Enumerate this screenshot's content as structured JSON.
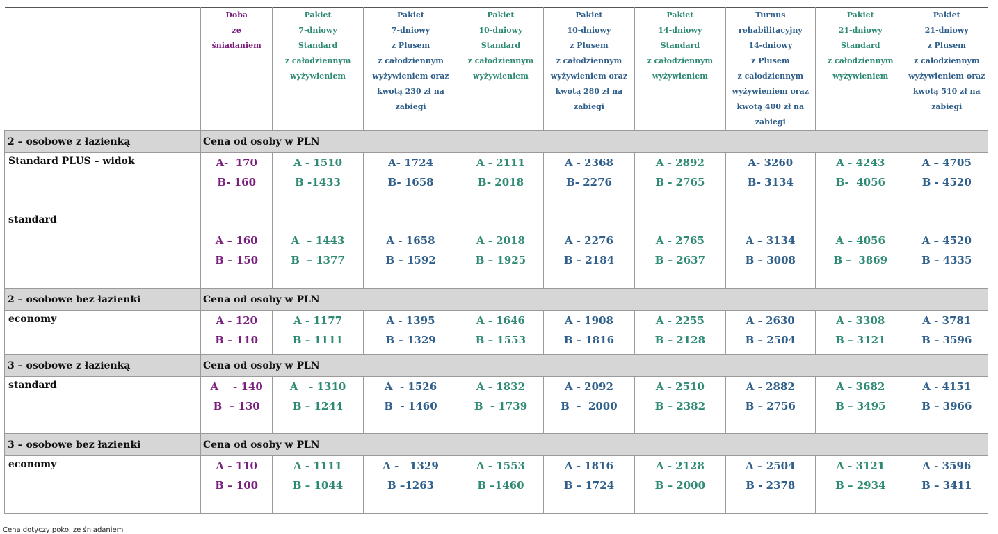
{
  "columns": [
    {
      "lines": [
        "Doba",
        "ze",
        "śniadaniem"
      ],
      "color": "purple"
    },
    {
      "lines": [
        "Pakiet",
        "7-dniowy",
        "Standard",
        "z całodziennym",
        "wyżywieniem"
      ],
      "color": "green"
    },
    {
      "lines": [
        "Pakiet",
        "7-dniowy",
        "z Plusem",
        "z całodziennym",
        "wyżywieniem oraz",
        "kwotą 230 zł na",
        "zabiegi"
      ],
      "color": "blue"
    },
    {
      "lines": [
        "Pakiet",
        "10-dniowy",
        "Standard",
        "z całodziennym",
        "wyżywieniem"
      ],
      "color": "green"
    },
    {
      "lines": [
        "Pakiet",
        "10-dniowy",
        "z Plusem",
        "z całodziennym",
        "wyżywieniem oraz",
        "kwotą 280 zł na",
        "zabiegi"
      ],
      "color": "blue"
    },
    {
      "lines": [
        "Pakiet",
        "14-dniowy",
        "Standard",
        "z całodziennym",
        "wyżywieniem"
      ],
      "color": "green"
    },
    {
      "lines": [
        "Turnus",
        "rehabilitacyjny",
        "14-dniowy",
        "z Plusem",
        "z całodziennym",
        "wyżywieniem oraz",
        "kwotą 400 zł na",
        "zabiegi"
      ],
      "color": "blue"
    },
    {
      "lines": [
        "Pakiet",
        "21-dniowy",
        "Standard",
        "z całodziennym",
        "wyżywieniem"
      ],
      "color": "green"
    },
    {
      "lines": [
        "Pakiet",
        "21-dniowy",
        "z Plusem",
        "z całodziennym",
        "wyżywieniem oraz",
        "kwotą 510 zł na",
        "zabiegi"
      ],
      "color": "blue"
    }
  ],
  "colors": {
    "purple": "#7a1f7e",
    "green": "#2e8a74",
    "blue": "#2f5f8a",
    "section_bg": "#d6d6d6"
  },
  "sections": [
    {
      "title": "2 – osobowe z łazienką",
      "note": "Cena od osoby w PLN",
      "rows": [
        {
          "label": "Standard PLUS – widok",
          "prices": [
            [
              "A-  170",
              "B- 160"
            ],
            [
              "A - 1510",
              "B -1433"
            ],
            [
              "A- 1724",
              "B- 1658"
            ],
            [
              "A - 2111",
              "B- 2018"
            ],
            [
              "A - 2368",
              "B- 2276"
            ],
            [
              "A - 2892",
              "B - 2765"
            ],
            [
              "A- 3260",
              "B- 3134"
            ],
            [
              "A - 4243",
              "B-  4056"
            ],
            [
              "A – 4705",
              "B - 4520"
            ]
          ]
        },
        {
          "label": "standard",
          "prices": [
            [
              "A – 160",
              "B – 150"
            ],
            [
              "A  – 1443",
              "B  – 1377"
            ],
            [
              "A - 1658",
              "B – 1592"
            ],
            [
              "A - 2018",
              "B – 1925"
            ],
            [
              "A - 2276",
              "B – 2184"
            ],
            [
              "A - 2765",
              "B – 2637"
            ],
            [
              "A – 3134",
              "B – 3008"
            ],
            [
              "A – 4056",
              "B –  3869"
            ],
            [
              "A – 4520",
              "B – 4335"
            ]
          ]
        }
      ]
    },
    {
      "title": "2 – osobowe bez  łazienki",
      "note": "Cena od osoby w PLN",
      "rows": [
        {
          "label": "economy",
          "prices": [
            [
              "A - 120",
              "B – 110"
            ],
            [
              "A - 1177",
              "B – 1111"
            ],
            [
              "A - 1395",
              "B – 1329"
            ],
            [
              "A - 1646",
              "B – 1553"
            ],
            [
              "A - 1908",
              "B – 1816"
            ],
            [
              "A - 2255",
              "B – 2128"
            ],
            [
              "A - 2630",
              "B – 2504"
            ],
            [
              "A - 3308",
              "B – 3121"
            ],
            [
              "A - 3781",
              "B – 3596"
            ]
          ]
        }
      ]
    },
    {
      "title": "3 – osobowe z łazienką",
      "note": "Cena od osoby w PLN",
      "rows": [
        {
          "label": "standard",
          "prices": [
            [
              "A    - 140",
              "B  – 130"
            ],
            [
              "A   - 1310",
              "B – 1244"
            ],
            [
              "A  - 1526",
              "B  - 1460"
            ],
            [
              "A - 1832",
              "B  - 1739"
            ],
            [
              "A - 2092",
              "B  -  2000"
            ],
            [
              "A - 2510",
              "B – 2382"
            ],
            [
              "A - 2882",
              "B – 2756"
            ],
            [
              "A - 3682",
              "B – 3495"
            ],
            [
              "A - 4151",
              "B – 3966"
            ]
          ]
        }
      ]
    },
    {
      "title": "3 – osobowe bez łazienki",
      "note": "Cena od osoby w PLN",
      "rows": [
        {
          "label": "economy",
          "prices": [
            [
              "A - 110",
              "B – 100"
            ],
            [
              "A - 1111",
              "B – 1044"
            ],
            [
              "A -   1329",
              "B –1263"
            ],
            [
              "A - 1553",
              "B –1460"
            ],
            [
              "A - 1816",
              "B – 1724"
            ],
            [
              "A - 2128",
              "B – 2000"
            ],
            [
              "A – 2504",
              "B - 2378"
            ],
            [
              "A - 3121",
              "B – 2934"
            ],
            [
              "A - 3596",
              "B – 3411"
            ]
          ]
        }
      ]
    }
  ],
  "footnote": "Cena dotyczy pokoi ze śniadaniem"
}
